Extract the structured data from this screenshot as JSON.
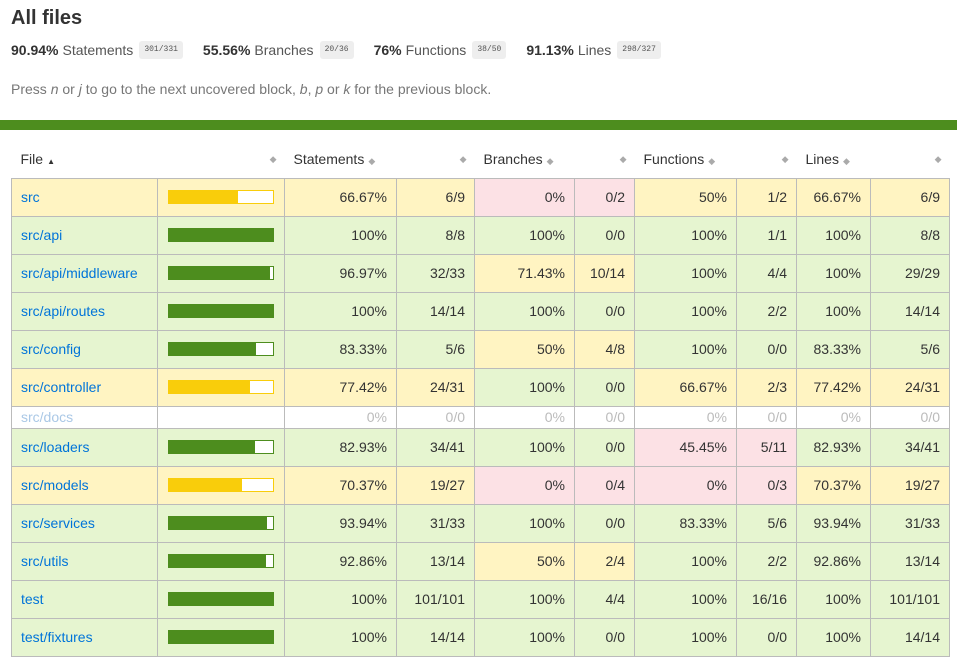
{
  "title": "All files",
  "summary": [
    {
      "pct": "90.94%",
      "label": "Statements",
      "frac": "301/331"
    },
    {
      "pct": "55.56%",
      "label": "Branches",
      "frac": "20/36"
    },
    {
      "pct": "76%",
      "label": "Functions",
      "frac": "38/50"
    },
    {
      "pct": "91.13%",
      "label": "Lines",
      "frac": "298/327"
    }
  ],
  "hint": {
    "p1": "Press ",
    "k1": "n",
    "p2": " or ",
    "k2": "j",
    "p3": " to go to the next uncovered block, ",
    "k3": "b",
    "p4": ", ",
    "k4": "p",
    "p5": " or ",
    "k5": "k",
    "p6": " for the previous block."
  },
  "columns": {
    "file": "File",
    "statements": "Statements",
    "branches": "Branches",
    "functions": "Functions",
    "lines": "Lines"
  },
  "colors": {
    "high": "#e6f5d0",
    "medium": "#fff4c2",
    "low": "#fce1e5",
    "bar_high": "#4d8d1e",
    "bar_medium": "#f9cd0b",
    "link": "#0074d9"
  },
  "rows": [
    {
      "file": "src",
      "level": "medium",
      "bar": 0.667,
      "st": "66.67%",
      "stf": "6/9",
      "stl": "medium",
      "br": "0%",
      "brf": "0/2",
      "brl": "low",
      "fn": "50%",
      "fnf": "1/2",
      "fnl": "medium",
      "ln": "66.67%",
      "lnf": "6/9",
      "lnl": "medium"
    },
    {
      "file": "src/api",
      "level": "high",
      "bar": 1.0,
      "st": "100%",
      "stf": "8/8",
      "stl": "high",
      "br": "100%",
      "brf": "0/0",
      "brl": "high",
      "fn": "100%",
      "fnf": "1/1",
      "fnl": "high",
      "ln": "100%",
      "lnf": "8/8",
      "lnl": "high"
    },
    {
      "file": "src/api/middleware",
      "level": "high",
      "bar": 0.9697,
      "st": "96.97%",
      "stf": "32/33",
      "stl": "high",
      "br": "71.43%",
      "brf": "10/14",
      "brl": "medium",
      "fn": "100%",
      "fnf": "4/4",
      "fnl": "high",
      "ln": "100%",
      "lnf": "29/29",
      "lnl": "high"
    },
    {
      "file": "src/api/routes",
      "level": "high",
      "bar": 1.0,
      "st": "100%",
      "stf": "14/14",
      "stl": "high",
      "br": "100%",
      "brf": "0/0",
      "brl": "high",
      "fn": "100%",
      "fnf": "2/2",
      "fnl": "high",
      "ln": "100%",
      "lnf": "14/14",
      "lnl": "high"
    },
    {
      "file": "src/config",
      "level": "high",
      "bar": 0.8333,
      "st": "83.33%",
      "stf": "5/6",
      "stl": "high",
      "br": "50%",
      "brf": "4/8",
      "brl": "medium",
      "fn": "100%",
      "fnf": "0/0",
      "fnl": "high",
      "ln": "83.33%",
      "lnf": "5/6",
      "lnl": "high"
    },
    {
      "file": "src/controller",
      "level": "medium",
      "bar": 0.7742,
      "st": "77.42%",
      "stf": "24/31",
      "stl": "medium",
      "br": "100%",
      "brf": "0/0",
      "brl": "high",
      "fn": "66.67%",
      "fnf": "2/3",
      "fnl": "medium",
      "ln": "77.42%",
      "lnf": "24/31",
      "lnl": "medium"
    },
    {
      "file": "src/docs",
      "level": "empty",
      "bar": null,
      "st": "0%",
      "stf": "0/0",
      "stl": "empty",
      "br": "0%",
      "brf": "0/0",
      "brl": "empty",
      "fn": "0%",
      "fnf": "0/0",
      "fnl": "empty",
      "ln": "0%",
      "lnf": "0/0",
      "lnl": "empty"
    },
    {
      "file": "src/loaders",
      "level": "high",
      "bar": 0.8293,
      "st": "82.93%",
      "stf": "34/41",
      "stl": "high",
      "br": "100%",
      "brf": "0/0",
      "brl": "high",
      "fn": "45.45%",
      "fnf": "5/11",
      "fnl": "low",
      "ln": "82.93%",
      "lnf": "34/41",
      "lnl": "high"
    },
    {
      "file": "src/models",
      "level": "medium",
      "bar": 0.7037,
      "st": "70.37%",
      "stf": "19/27",
      "stl": "medium",
      "br": "0%",
      "brf": "0/4",
      "brl": "low",
      "fn": "0%",
      "fnf": "0/3",
      "fnl": "low",
      "ln": "70.37%",
      "lnf": "19/27",
      "lnl": "medium"
    },
    {
      "file": "src/services",
      "level": "high",
      "bar": 0.9394,
      "st": "93.94%",
      "stf": "31/33",
      "stl": "high",
      "br": "100%",
      "brf": "0/0",
      "brl": "high",
      "fn": "83.33%",
      "fnf": "5/6",
      "fnl": "high",
      "ln": "93.94%",
      "lnf": "31/33",
      "lnl": "high"
    },
    {
      "file": "src/utils",
      "level": "high",
      "bar": 0.9286,
      "st": "92.86%",
      "stf": "13/14",
      "stl": "high",
      "br": "50%",
      "brf": "2/4",
      "brl": "medium",
      "fn": "100%",
      "fnf": "2/2",
      "fnl": "high",
      "ln": "92.86%",
      "lnf": "13/14",
      "lnl": "high"
    },
    {
      "file": "test",
      "level": "high",
      "bar": 1.0,
      "st": "100%",
      "stf": "101/101",
      "stl": "high",
      "br": "100%",
      "brf": "4/4",
      "brl": "high",
      "fn": "100%",
      "fnf": "16/16",
      "fnl": "high",
      "ln": "100%",
      "lnf": "101/101",
      "lnl": "high"
    },
    {
      "file": "test/fixtures",
      "level": "high",
      "bar": 1.0,
      "st": "100%",
      "stf": "14/14",
      "stl": "high",
      "br": "100%",
      "brf": "0/0",
      "brl": "high",
      "fn": "100%",
      "fnf": "0/0",
      "fnl": "high",
      "ln": "100%",
      "lnf": "14/14",
      "lnl": "high"
    }
  ]
}
